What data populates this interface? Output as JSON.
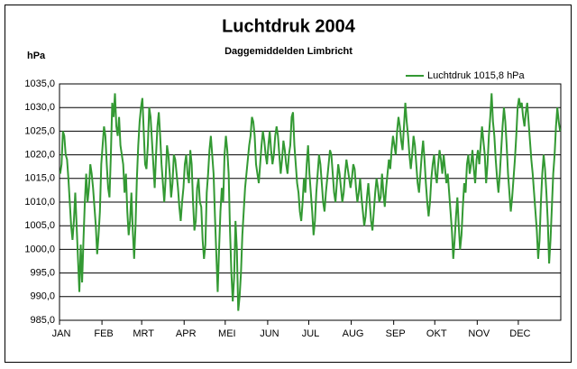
{
  "chart_data": {
    "type": "line",
    "title": "Luchtdruk 2004",
    "subtitle": "Daggemiddelden Limbricht",
    "ylabel": "hPa",
    "legend": "top right",
    "grid": true,
    "xlim": [
      0,
      366
    ],
    "xticks": [
      {
        "value": 0,
        "label": "JAN"
      },
      {
        "value": 31,
        "label": "FEB"
      },
      {
        "value": 60,
        "label": "MRT"
      },
      {
        "value": 91,
        "label": "APR"
      },
      {
        "value": 121,
        "label": "MEI"
      },
      {
        "value": 152,
        "label": "JUN"
      },
      {
        "value": 182,
        "label": "JUL"
      },
      {
        "value": 213,
        "label": "AUG"
      },
      {
        "value": 244,
        "label": "SEP"
      },
      {
        "value": 274,
        "label": "OKT"
      },
      {
        "value": 305,
        "label": "NOV"
      },
      {
        "value": 335,
        "label": "DEC"
      }
    ],
    "ylim": [
      985,
      1035
    ],
    "yticks": [
      {
        "value": 985,
        "label": "985,0"
      },
      {
        "value": 990,
        "label": "990,0"
      },
      {
        "value": 995,
        "label": "995,0"
      },
      {
        "value": 1000,
        "label": "1000,0"
      },
      {
        "value": 1005,
        "label": "1005,0"
      },
      {
        "value": 1010,
        "label": "1010,0"
      },
      {
        "value": 1015,
        "label": "1015,0"
      },
      {
        "value": 1020,
        "label": "1020,0"
      },
      {
        "value": 1025,
        "label": "1025,0"
      },
      {
        "value": 1030,
        "label": "1030,0"
      },
      {
        "value": 1035,
        "label": "1035,0"
      }
    ],
    "series": [
      {
        "name": "Luchtdruk 1015,8 hPa",
        "color": "#339933",
        "values": [
          1016,
          1018,
          1025,
          1024,
          1020,
          1019,
          1015,
          1010,
          1005,
          1002,
          1006,
          1012,
          1005,
          998,
          991,
          1001,
          993,
          1002,
          1010,
          1016,
          1010,
          1013,
          1018,
          1016,
          1013,
          1009,
          1005,
          999,
          1003,
          1008,
          1018,
          1022,
          1026,
          1024,
          1018,
          1013,
          1011,
          1020,
          1031,
          1028,
          1033,
          1026,
          1024,
          1028,
          1022,
          1020,
          1018,
          1012,
          1016,
          1008,
          1003,
          1006,
          1012,
          1004,
          998,
          1005,
          1015,
          1022,
          1027,
          1030,
          1032,
          1025,
          1018,
          1017,
          1022,
          1030,
          1028,
          1023,
          1018,
          1013,
          1020,
          1026,
          1029,
          1024,
          1018,
          1014,
          1010,
          1015,
          1022,
          1020,
          1016,
          1011,
          1014,
          1020,
          1019,
          1016,
          1013,
          1009,
          1006,
          1010,
          1013,
          1018,
          1020,
          1016,
          1014,
          1021,
          1018,
          1010,
          1004,
          1006,
          1013,
          1015,
          1010,
          1009,
          1002,
          998,
          1001,
          1012,
          1016,
          1021,
          1024,
          1020,
          1016,
          1007,
          999,
          991,
          1000,
          1008,
          1013,
          1010,
          1020,
          1024,
          1021,
          1016,
          1004,
          995,
          989,
          994,
          1006,
          1000,
          987,
          990,
          995,
          1003,
          1008,
          1013,
          1016,
          1019,
          1022,
          1024,
          1028,
          1027,
          1024,
          1018,
          1016,
          1014,
          1018,
          1022,
          1025,
          1023,
          1020,
          1018,
          1022,
          1025,
          1021,
          1018,
          1020,
          1024,
          1026,
          1024,
          1020,
          1016,
          1019,
          1023,
          1021,
          1018,
          1016,
          1020,
          1022,
          1028,
          1029,
          1022,
          1018,
          1014,
          1012,
          1008,
          1006,
          1010,
          1015,
          1012,
          1018,
          1022,
          1016,
          1012,
          1008,
          1003,
          1006,
          1012,
          1016,
          1020,
          1018,
          1014,
          1010,
          1008,
          1012,
          1015,
          1018,
          1021,
          1020,
          1016,
          1012,
          1010,
          1014,
          1018,
          1016,
          1013,
          1010,
          1012,
          1016,
          1019,
          1017,
          1015,
          1013,
          1015,
          1018,
          1017,
          1013,
          1010,
          1012,
          1015,
          1011,
          1008,
          1005,
          1007,
          1011,
          1014,
          1010,
          1006,
          1004,
          1008,
          1012,
          1015,
          1013,
          1010,
          1011,
          1016,
          1012,
          1009,
          1013,
          1016,
          1019,
          1017,
          1021,
          1024,
          1022,
          1020,
          1025,
          1028,
          1026,
          1023,
          1021,
          1026,
          1031,
          1027,
          1024,
          1020,
          1017,
          1020,
          1024,
          1022,
          1018,
          1014,
          1012,
          1016,
          1020,
          1023,
          1019,
          1014,
          1010,
          1007,
          1010,
          1015,
          1018,
          1020,
          1016,
          1014,
          1018,
          1021,
          1019,
          1016,
          1020,
          1017,
          1014,
          1016,
          1012,
          1008,
          1004,
          998,
          1002,
          1007,
          1011,
          1005,
          1000,
          1003,
          1009,
          1014,
          1012,
          1018,
          1020,
          1016,
          1018,
          1021,
          1017,
          1014,
          1019,
          1021,
          1018,
          1022,
          1026,
          1023,
          1020,
          1014,
          1018,
          1024,
          1028,
          1033,
          1027,
          1024,
          1019,
          1015,
          1012,
          1016,
          1021,
          1026,
          1030,
          1027,
          1022,
          1016,
          1012,
          1008,
          1011,
          1015,
          1019,
          1024,
          1030,
          1032,
          1030,
          1031,
          1028,
          1026,
          1029,
          1031,
          1027,
          1023,
          1019,
          1016,
          1012,
          1008,
          1004,
          998,
          1002,
          1010,
          1016,
          1020,
          1017,
          1012,
          1006,
          997,
          1002,
          1009,
          1016,
          1020,
          1026,
          1030,
          1027,
          1025
        ]
      }
    ]
  }
}
